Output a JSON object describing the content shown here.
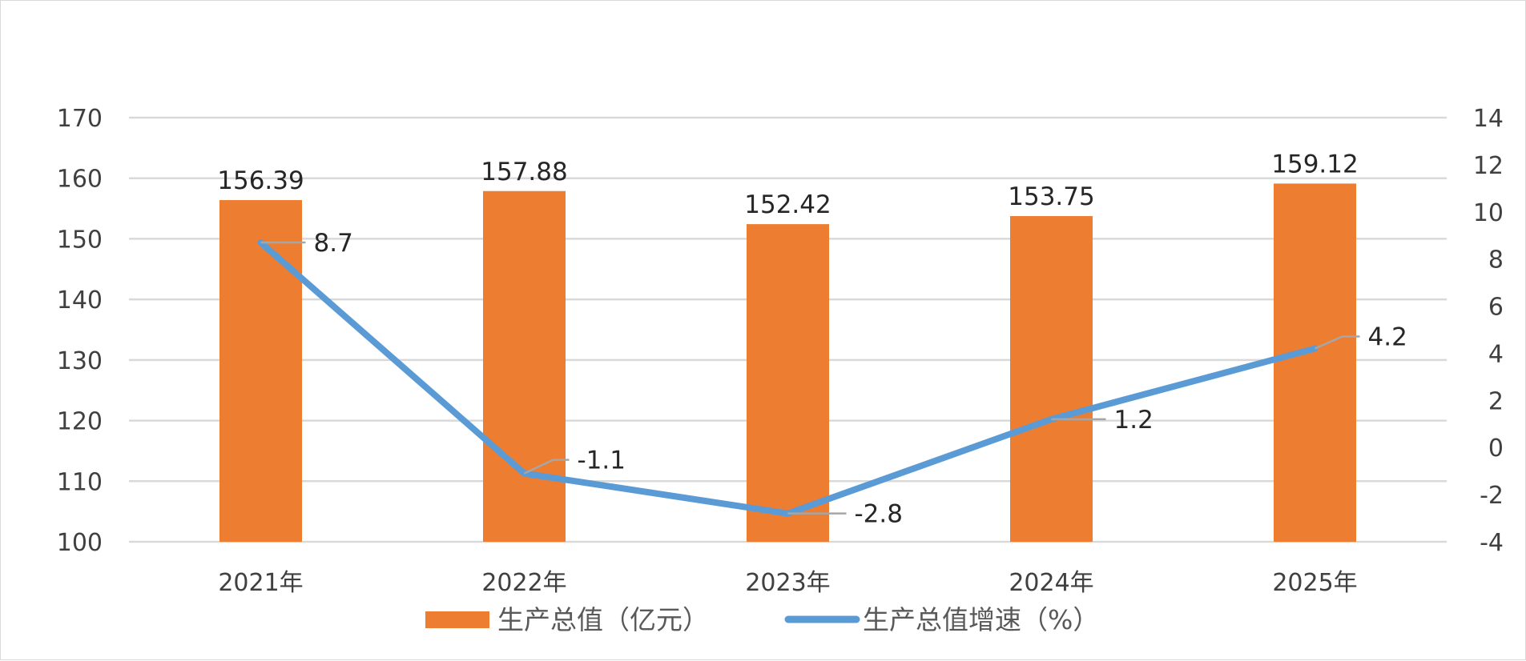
{
  "chart_data": {
    "type": "bar+line",
    "categories": [
      "2021年",
      "2022年",
      "2023年",
      "2024年",
      "2025年"
    ],
    "series": [
      {
        "name": "生产总值（亿元）",
        "type": "bar",
        "axis": "left",
        "color": "#ED7D31",
        "values": [
          156.39,
          157.88,
          152.42,
          153.75,
          159.12
        ]
      },
      {
        "name": "生产总值增速（%）",
        "type": "line",
        "axis": "right",
        "color": "#5B9BD5",
        "values": [
          8.7,
          -1.1,
          -2.8,
          1.2,
          4.2
        ]
      }
    ],
    "y_left": {
      "min": 100,
      "max": 170,
      "step": 10
    },
    "y_right": {
      "min": -4,
      "max": 14,
      "step": 2
    },
    "grid": true,
    "legend": "bottom",
    "title": ""
  }
}
